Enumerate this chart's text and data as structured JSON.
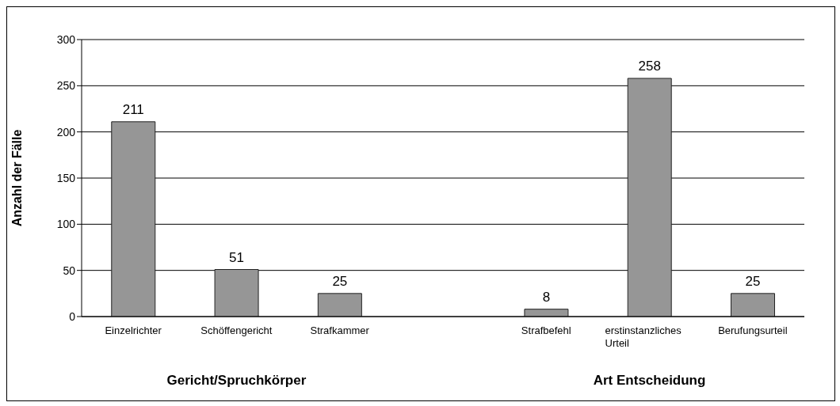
{
  "chart_data": {
    "type": "bar",
    "ylabel": "Anzahl der Fälle",
    "categories": [
      "Einzelrichter",
      "Schöffengericht",
      "Strafkammer",
      null,
      "Strafbefehl",
      "erstinstanzliches Urteil",
      "Berufungsurteil"
    ],
    "values": [
      211,
      51,
      25,
      null,
      8,
      258,
      25
    ],
    "color": "#969696",
    "ylim": [
      0,
      300
    ],
    "yticks": [
      0,
      50,
      100,
      150,
      200,
      250,
      300
    ],
    "grid": "y",
    "data_labels": true,
    "annotations": [
      "Gericht/Spruchkörper",
      "Art Entscheidung"
    ]
  }
}
